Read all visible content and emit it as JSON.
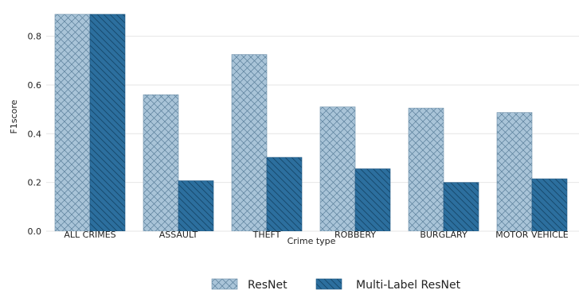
{
  "chart_data": {
    "type": "bar",
    "title": "",
    "xlabel": "Crime type",
    "ylabel": "F1score",
    "categories": [
      "ALL CRIMES",
      "ASSAULT",
      "THEFT",
      "ROBBERY",
      "BURGLARY",
      "MOTOR VEHICLE"
    ],
    "series": [
      {
        "name": "ResNet",
        "values": [
          0.89,
          0.56,
          0.725,
          0.51,
          0.505,
          0.487
        ],
        "color": "#a9c4d8",
        "pattern": "crosshatch"
      },
      {
        "name": "Multi-Label ResNet",
        "values": [
          0.89,
          0.207,
          0.303,
          0.256,
          0.2,
          0.215
        ],
        "color": "#2c6f9e",
        "pattern": "diagonal"
      }
    ],
    "ylim": [
      0,
      0.89
    ],
    "yticks": [
      "0.0",
      "0.2",
      "0.4",
      "0.6",
      "0.8"
    ],
    "grid": true,
    "legend_position": "bottom"
  }
}
